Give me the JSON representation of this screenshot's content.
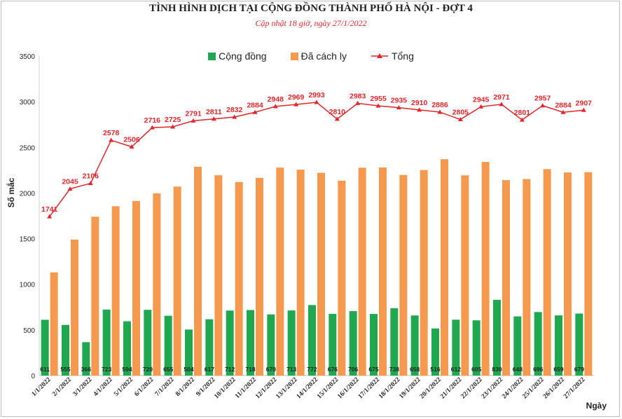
{
  "chart_data": {
    "type": "bar",
    "title": "TÌNH HÌNH DỊCH TẠI CỘNG ĐỒNG THÀNH PHỐ HÀ NỘI - ĐỢT 4",
    "subtitle": "Cập nhật 18 giờ, ngày  27/1/2022",
    "xlabel": "Ngày",
    "ylabel": "Số mắc",
    "ylim": [
      0,
      3500
    ],
    "yticks": [
      "0",
      "500",
      "1000",
      "1500",
      "2000",
      "2500",
      "3000",
      "3500"
    ],
    "legend_position": "top-center",
    "categories": [
      "1/1/2022",
      "2/1/2022",
      "3/1/2022",
      "4/1/2022",
      "5/1/2022",
      "6/1/2022",
      "7/1/2022",
      "8/1/2022",
      "9/1/2022",
      "10/1/2022",
      "11/1/2022",
      "12/1/2022",
      "13/1/2022",
      "14/1/2022",
      "15/1/2022",
      "16/1/2022",
      "17/1/2022",
      "18/1/2022",
      "19/1/2022",
      "20/1/2022",
      "21/1/2022",
      "22/1/2022",
      "23/1/2022",
      "24/1/2022",
      "25/1/2022",
      "26/1/2022",
      "27/1/2022"
    ],
    "series": [
      {
        "name": "Cộng đồng",
        "type": "bar",
        "color": "#1fa84f",
        "values": [
          611,
          555,
          366,
          723,
          594,
          720,
          655,
          504,
          617,
          712,
          718,
          670,
          713,
          772,
          676,
          706,
          675,
          738,
          658,
          516,
          612,
          605,
          830,
          648,
          696,
          659,
          679
        ]
      },
      {
        "name": "Đã cách ly",
        "type": "bar",
        "color": "#f4994d",
        "values": [
          1130,
          1490,
          1740,
          1855,
          1912,
          1996,
          2070,
          2287,
          2194,
          2120,
          2166,
          2278,
          2256,
          2221,
          2134,
          2277,
          2280,
          2197,
          2252,
          2370,
          2193,
          2340,
          2141,
          2153,
          2261,
          2225,
          2228
        ]
      },
      {
        "name": "Tổng",
        "type": "line",
        "color": "#e0262b",
        "values": [
          1741,
          2045,
          2106,
          2578,
          2506,
          2716,
          2725,
          2791,
          2811,
          2832,
          2884,
          2948,
          2969,
          2993,
          2810,
          2983,
          2955,
          2935,
          2910,
          2886,
          2805,
          2945,
          2971,
          2801,
          2957,
          2884,
          2907
        ]
      }
    ]
  }
}
